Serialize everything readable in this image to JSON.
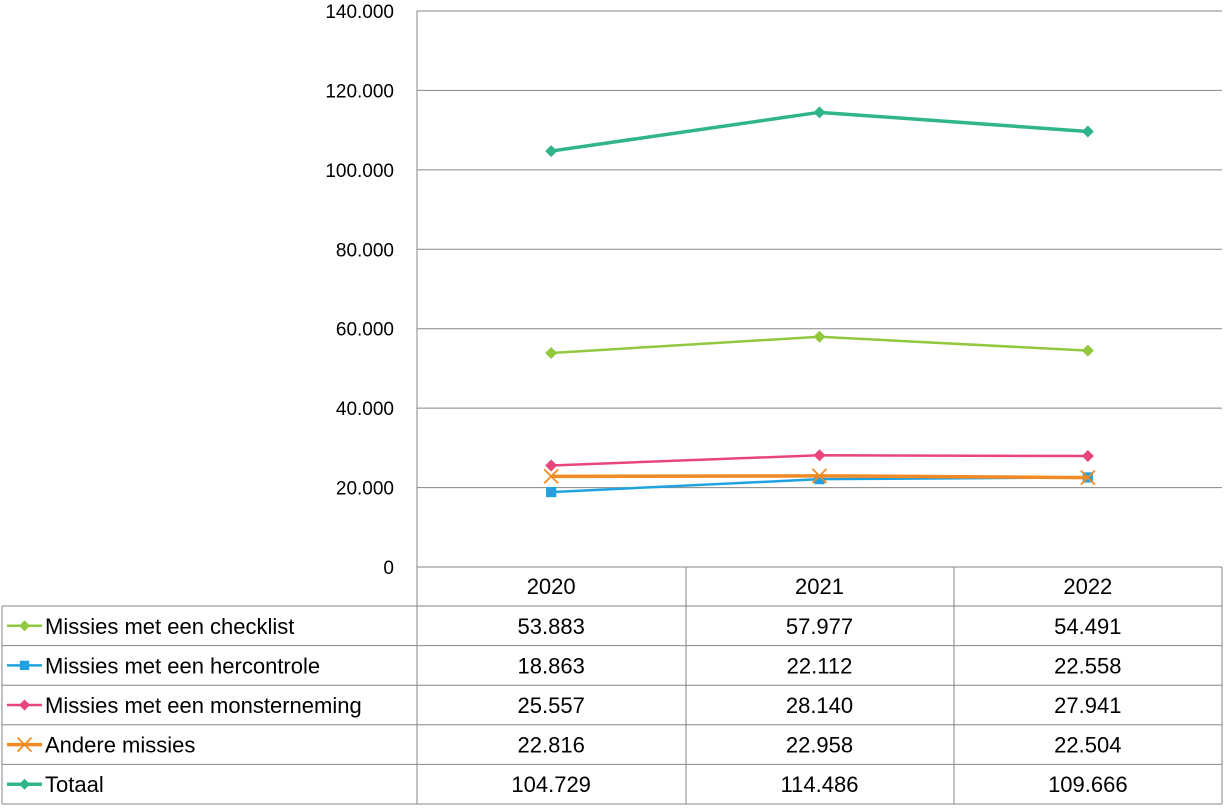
{
  "chart_data": {
    "type": "line",
    "title": "",
    "xlabel": "",
    "ylabel": "",
    "categories": [
      "2020",
      "2021",
      "2022"
    ],
    "ylim": [
      0,
      140000
    ],
    "y_ticks": [
      "0",
      "20.000",
      "40.000",
      "60.000",
      "80.000",
      "100.000",
      "120.000",
      "140.000"
    ],
    "grid": "horizontal",
    "legend": "data-table",
    "series": [
      {
        "name": "Missies met een checklist",
        "values": [
          53883,
          57977,
          54491
        ],
        "labels": [
          "53.883",
          "57.977",
          "54.491"
        ],
        "color": "#92c83e",
        "marker": "diamond",
        "width": 2.5
      },
      {
        "name": "Missies met een hercontrole",
        "values": [
          18863,
          22112,
          22558
        ],
        "labels": [
          "18.863",
          "22.112",
          "22.558"
        ],
        "color": "#1fa2e0",
        "marker": "square",
        "width": 2.5
      },
      {
        "name": "Missies met een monsterneming",
        "values": [
          25557,
          28140,
          27941
        ],
        "labels": [
          "25.557",
          "28.140",
          "27.941"
        ],
        "color": "#e8457a",
        "marker": "diamond",
        "width": 2.5
      },
      {
        "name": "Andere missies",
        "values": [
          22816,
          22958,
          22504
        ],
        "labels": [
          "22.816",
          "22.958",
          "22.504"
        ],
        "color": "#f28a25",
        "marker": "x",
        "width": 3.5
      },
      {
        "name": "Totaal",
        "values": [
          104729,
          114486,
          109666
        ],
        "labels": [
          "104.729",
          "114.486",
          "109.666"
        ],
        "color": "#2fb48c",
        "marker": "diamond",
        "width": 3.5
      }
    ]
  }
}
